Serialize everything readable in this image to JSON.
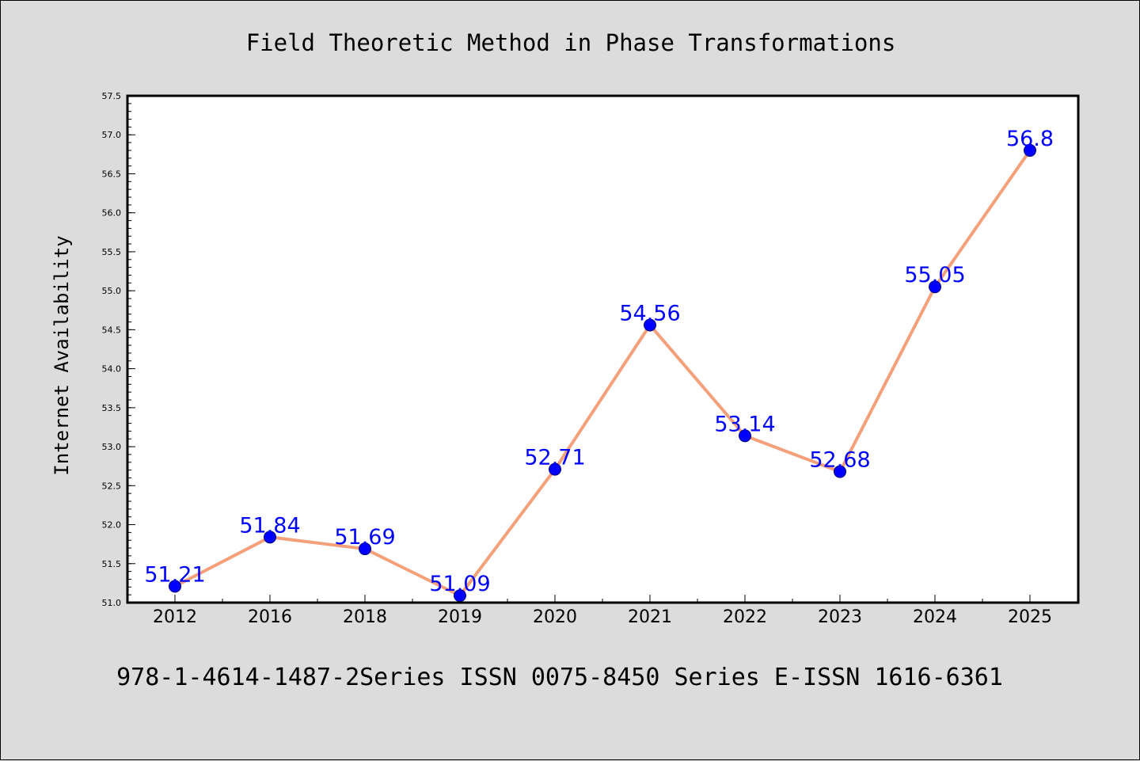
{
  "chart_data": {
    "type": "line",
    "title": "Field Theoretic Method in Phase Transformations",
    "ylabel": "Internet Availability",
    "xlabel": "",
    "footer": "978-1-4614-1487-2Series ISSN 0075-8450 Series E-ISSN 1616-6361",
    "categories": [
      "2012",
      "2016",
      "2018",
      "2019",
      "2020",
      "2021",
      "2022",
      "2023",
      "2024",
      "2025"
    ],
    "series": [
      {
        "values": [
          51.21,
          51.84,
          51.69,
          51.09,
          52.71,
          54.56,
          53.14,
          52.68,
          55.05,
          56.8
        ]
      }
    ],
    "data_labels": [
      "51.21",
      "51.84",
      "51.69",
      "51.09",
      "52.71",
      "54.56",
      "53.14",
      "52.68",
      "55.05",
      "56.8"
    ],
    "ylim": [
      51.0,
      57.5
    ],
    "yticks": [
      "51.0",
      "51.5",
      "52.0",
      "52.5",
      "53.0",
      "53.5",
      "54.0",
      "54.5",
      "55.0",
      "55.5",
      "56.0",
      "56.5",
      "57.0",
      "57.5"
    ],
    "grid": false,
    "colors": {
      "line": "#f4a07a",
      "marker": "#0000ff",
      "marker_edge": "#000080",
      "label": "#0000ff",
      "background": "#dcdcdc",
      "plot_background": "#ffffff"
    }
  }
}
